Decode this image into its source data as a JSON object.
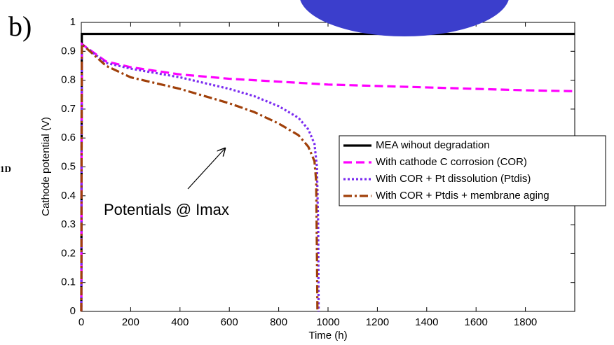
{
  "chart_data": {
    "type": "line",
    "panel_label": "b)",
    "side_label": "1D",
    "x_label": "Time (h)",
    "y_label": "Cathode potential (V)",
    "annotation": "Potentials @ Imax",
    "xlim": [
      0,
      2000
    ],
    "xticks": [
      0,
      200,
      400,
      600,
      800,
      1000,
      1200,
      1400,
      1600,
      1800
    ],
    "ylim": [
      0,
      1
    ],
    "yticks": [
      0,
      0.1,
      0.2,
      0.3,
      0.4,
      0.5,
      0.6,
      0.7,
      0.8,
      0.9,
      1
    ],
    "grid": false,
    "legend": "right",
    "series": [
      {
        "name": "MEA wihout degradation",
        "color": "#000000",
        "dash": "solid",
        "x": [
          0,
          2,
          2000
        ],
        "values": [
          0,
          0.96,
          0.96
        ]
      },
      {
        "name": "With cathode C corrosion (COR)",
        "color": "#ff00ff",
        "dash": "dashed",
        "x": [
          0,
          2,
          100,
          200,
          400,
          600,
          800,
          1000,
          1200,
          1400,
          1600,
          1800,
          2000
        ],
        "values": [
          0,
          0.925,
          0.865,
          0.845,
          0.82,
          0.805,
          0.795,
          0.785,
          0.78,
          0.775,
          0.77,
          0.765,
          0.762
        ]
      },
      {
        "name": "With COR + Pt dissolution (Ptdis)",
        "color": "#7b2cf0",
        "dash": "dotted",
        "x": [
          0,
          2,
          100,
          200,
          400,
          600,
          700,
          800,
          880,
          920,
          945,
          955,
          960,
          962
        ],
        "values": [
          0,
          0.925,
          0.86,
          0.84,
          0.81,
          0.77,
          0.745,
          0.71,
          0.67,
          0.63,
          0.58,
          0.5,
          0.3,
          0
        ]
      },
      {
        "name": "With COR + Ptdis + membrane aging",
        "color": "#a0400a",
        "dash": "dashdot",
        "x": [
          0,
          2,
          100,
          200,
          400,
          600,
          700,
          800,
          880,
          920,
          945,
          952,
          955,
          957
        ],
        "values": [
          0,
          0.925,
          0.85,
          0.81,
          0.77,
          0.72,
          0.69,
          0.65,
          0.61,
          0.57,
          0.52,
          0.45,
          0.2,
          0
        ]
      }
    ]
  }
}
